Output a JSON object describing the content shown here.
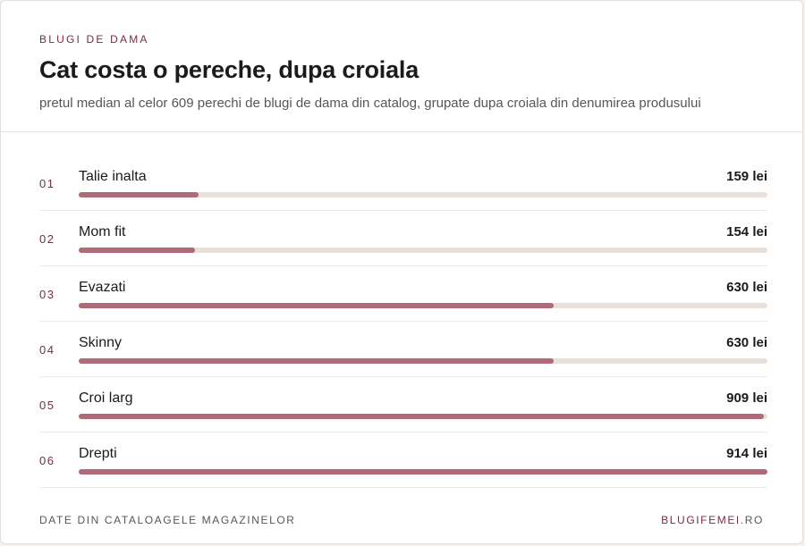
{
  "header": {
    "eyebrow": "BLUGI DE DAMA",
    "title": "Cat costa o pereche, dupa croiala",
    "subtitle": "pretul median al celor 609 perechi de blugi de dama din catalog, grupate dupa croiala din denumirea produsului"
  },
  "chart_data": {
    "type": "bar",
    "orientation": "horizontal",
    "categories": [
      "Talie inalta",
      "Mom fit",
      "Evazati",
      "Skinny",
      "Croi larg",
      "Drepti"
    ],
    "ranks": [
      "01",
      "02",
      "03",
      "04",
      "05",
      "06"
    ],
    "values": [
      159,
      154,
      630,
      630,
      909,
      914
    ],
    "value_labels": [
      "159 lei",
      "154 lei",
      "630 lei",
      "630 lei",
      "909 lei",
      "914 lei"
    ],
    "xlim": [
      0,
      914
    ],
    "title": "Cat costa o pereche, dupa croiala"
  },
  "colors": {
    "accent": "#7b2d3e",
    "bar_fill": "#b06a78",
    "bar_track": "#e8e0da"
  },
  "footer": {
    "source": "DATE DIN CATALOAGELE MAGAZINELOR",
    "brand_main": "BLUGIFEMEI",
    "brand_tld": ".RO"
  }
}
